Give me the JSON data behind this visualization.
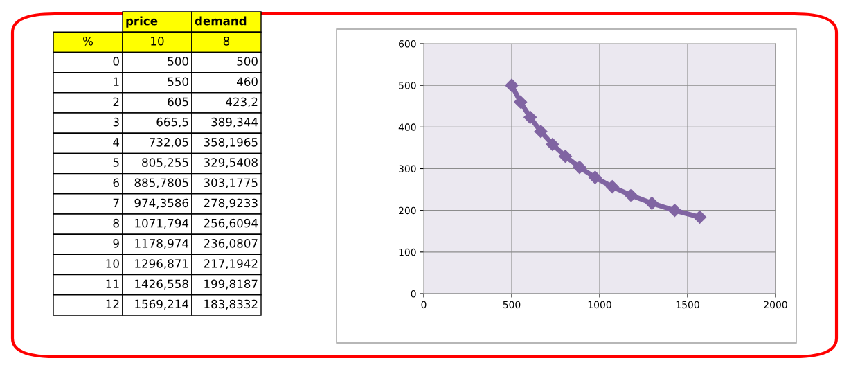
{
  "chart_data": {
    "type": "line",
    "x": [
      500,
      550,
      605,
      665.5,
      732.05,
      805.255,
      885.7805,
      974.3586,
      1071.794,
      1178.974,
      1296.871,
      1426.558,
      1569.214
    ],
    "series": [
      {
        "color": "#8064a2",
        "values": [
          500,
          460,
          423.2,
          389.344,
          358.1965,
          329.5408,
          303.1775,
          278.9233,
          256.6094,
          236.0807,
          217.1942,
          199.8187,
          183.8332
        ]
      }
    ],
    "xlim": [
      0,
      2000
    ],
    "xticks": [
      0,
      500,
      1000,
      1500,
      2000
    ],
    "ylim": [
      0,
      600
    ],
    "yticks": [
      0,
      100,
      200,
      300,
      400,
      500,
      600
    ],
    "grid": true,
    "marker": "diamond",
    "line_style": "solid",
    "annotations": [
      "price",
      "demand",
      "%",
      "10",
      "8",
      "0",
      "500",
      "500",
      "1",
      "550",
      "460",
      "2",
      "605",
      "423,2",
      "3",
      "665,5",
      "389,344",
      "4",
      "732,05",
      "358,1965",
      "5",
      "805,255",
      "329,5408",
      "6",
      "885,7805",
      "303,1775",
      "7",
      "974,3586",
      "278,9233",
      "8",
      "1071,794",
      "256,6094",
      "9",
      "1178,974",
      "236,0807",
      "10",
      "1296,871",
      "217,1942",
      "11",
      "1426,558",
      "199,8187",
      "12",
      "1569,214",
      "183,8332"
    ]
  }
}
